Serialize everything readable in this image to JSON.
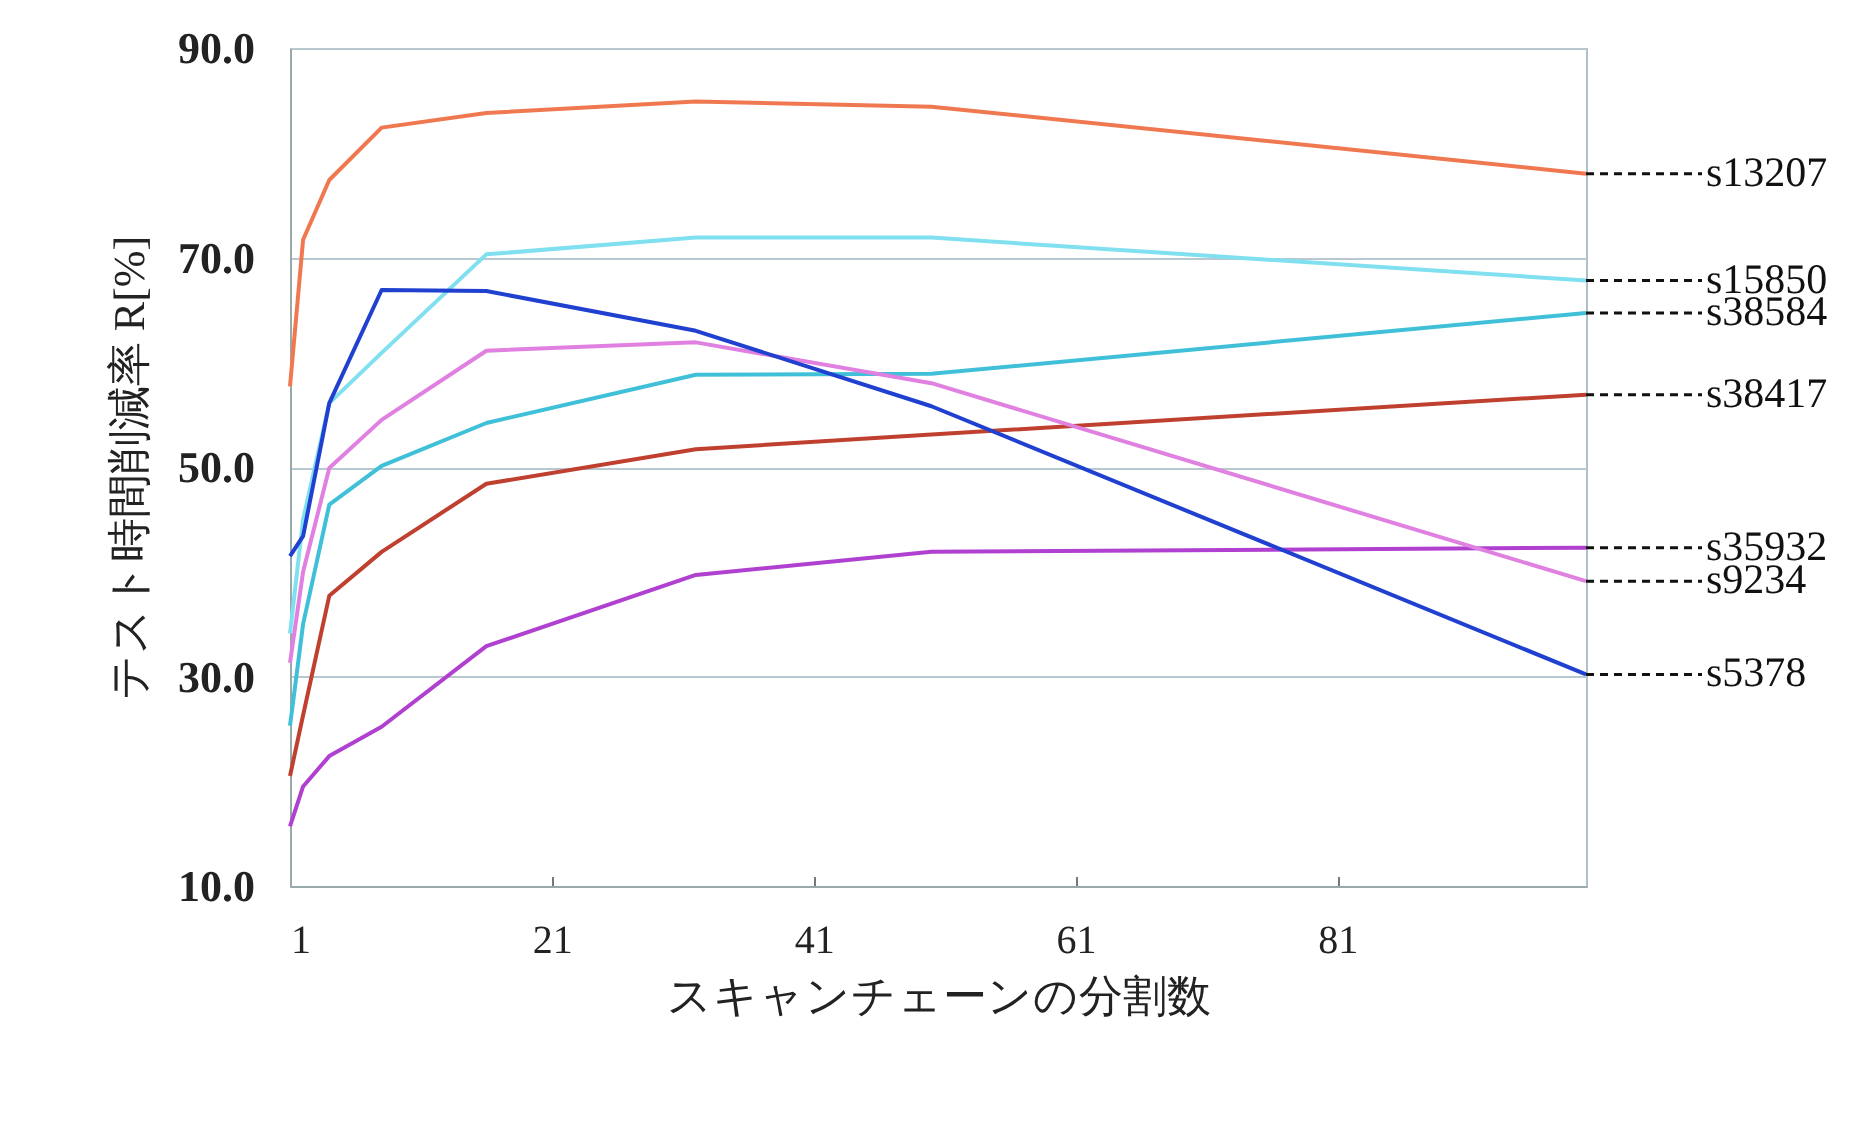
{
  "chart_data": {
    "type": "line",
    "xlabel": "スキャンチェーンの分割数",
    "ylabel": "テスト時間削減率 R[%]",
    "x": [
      1,
      2,
      4,
      8,
      16,
      32,
      50,
      100
    ],
    "xlim": [
      1,
      100
    ],
    "xticks": [
      1,
      21,
      41,
      61,
      81
    ],
    "ylim": [
      10,
      90
    ],
    "yticks": [
      {
        "value": 10,
        "label": "10.0"
      },
      {
        "value": 30,
        "label": "30.0"
      },
      {
        "value": 50,
        "label": "50.0"
      },
      {
        "value": 70,
        "label": "70.0"
      },
      {
        "value": 90,
        "label": "90.0"
      }
    ],
    "grid": "y",
    "legend": false,
    "marker": "none",
    "line_style": "solid",
    "series": [
      {
        "name": "s13207",
        "color": "#f07850",
        "values": [
          57.7,
          71.7,
          77.4,
          82.4,
          83.8,
          84.9,
          84.4,
          78.0
        ]
      },
      {
        "name": "s15850",
        "color": "#80e0f0",
        "values": [
          34.1,
          45,
          56.1,
          60.9,
          70.3,
          71.9,
          71.9,
          67.8
        ]
      },
      {
        "name": "s38584",
        "color": "#40c0d8",
        "values": [
          25.3,
          35,
          46.4,
          50.1,
          54.2,
          58.8,
          58.9,
          64.7
        ]
      },
      {
        "name": "s38417",
        "color": "#c04030",
        "values": [
          20.5,
          26.3,
          37.7,
          41.9,
          48.4,
          51.7,
          53.1,
          56.9
        ]
      },
      {
        "name": "s35932",
        "color": "#b040d0",
        "values": [
          15.7,
          19.5,
          22.4,
          25.2,
          32.9,
          39.7,
          41.9,
          42.3
        ]
      },
      {
        "name": "s9234",
        "color": "#e080e0",
        "values": [
          31.3,
          40,
          49.9,
          54.5,
          61.1,
          61.9,
          58.0,
          39.1
        ]
      },
      {
        "name": "s5378",
        "color": "#2040d0",
        "values": [
          41.5,
          43.4,
          56.1,
          66.9,
          66.8,
          63.0,
          55.8,
          30.2
        ]
      }
    ]
  }
}
